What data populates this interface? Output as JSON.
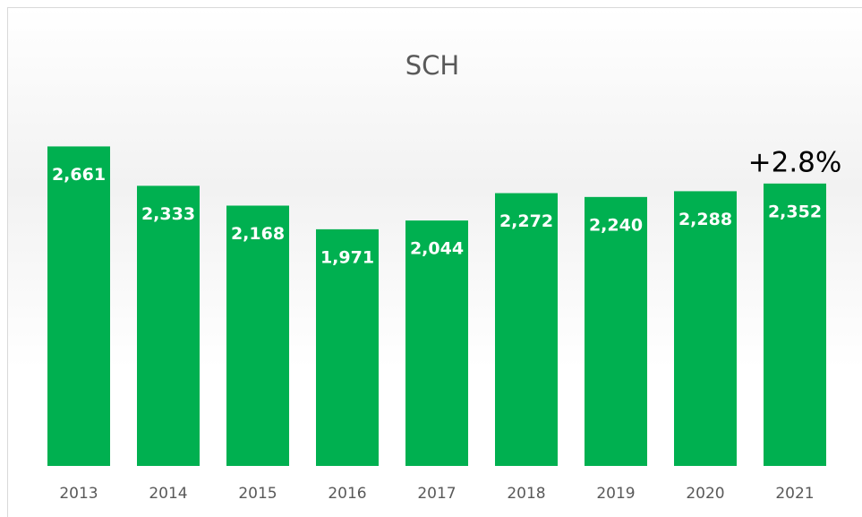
{
  "chart_data": {
    "type": "bar",
    "title": "SCH",
    "categories": [
      "2013",
      "2014",
      "2015",
      "2016",
      "2017",
      "2018",
      "2019",
      "2020",
      "2021"
    ],
    "values": [
      2661,
      2333,
      2168,
      1971,
      2044,
      2272,
      2240,
      2288,
      2352
    ],
    "value_labels": [
      "2,661",
      "2,333",
      "2,168",
      "1,971",
      "2,044",
      "2,272",
      "2,240",
      "2,288",
      "2,352"
    ],
    "color": "#00b050",
    "ylim": [
      0,
      3000
    ],
    "annotations": [
      "+2.8%"
    ]
  }
}
